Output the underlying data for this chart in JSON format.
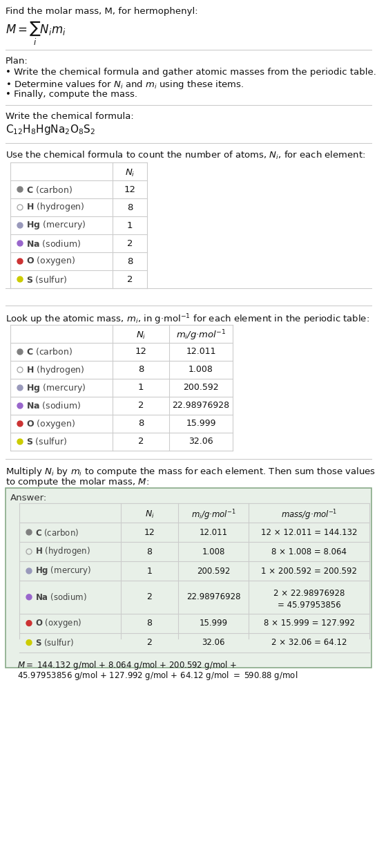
{
  "title_line1": "Find the molar mass, M, for hermophenyl:",
  "title_formula": "$M = \\sum_i N_i m_i$",
  "plan_header": "Plan:",
  "plan_bullets": [
    "Write the chemical formula and gather atomic masses from the periodic table.",
    "Determine values for $N_i$ and $m_i$ using these items.",
    "Finally, compute the mass."
  ],
  "formula_header": "Write the chemical formula:",
  "formula": "$\\mathregular{C_{12}H_8HgNa_2O_8S_2}$",
  "table1_header": "Use the chemical formula to count the number of atoms, $N_i$, for each element:",
  "table2_header": "Look up the atomic mass, $m_i$, in g·mol$^{-1}$ for each element in the periodic table:",
  "multiply_header": "Multiply $N_i$ by $m_i$ to compute the mass for each element. Then sum those values\nto compute the molar mass, $M$:",
  "elements": [
    "C (carbon)",
    "H (hydrogen)",
    "Hg (mercury)",
    "Na (sodium)",
    "O (oxygen)",
    "S (sulfur)"
  ],
  "element_symbols": [
    "C",
    "H",
    "Hg",
    "Na",
    "O",
    "S"
  ],
  "Ni": [
    12,
    8,
    1,
    2,
    8,
    2
  ],
  "mi": [
    "12.011",
    "1.008",
    "200.592",
    "22.98976928",
    "15.999",
    "32.06"
  ],
  "mass_str": [
    "12 × 12.011 = 144.132",
    "8 × 1.008 = 8.064",
    "1 × 200.592 = 200.592",
    "2 × 22.98976928\n= 45.97953856",
    "8 × 15.999 = 127.992",
    "2 × 32.06 = 64.12"
  ],
  "dot_colors": [
    "#808080",
    "#ffffff",
    "#9999bb",
    "#9966cc",
    "#cc3333",
    "#cccc00"
  ],
  "dot_open": [
    false,
    true,
    false,
    false,
    false,
    false
  ],
  "answer_box_color": "#e8f0e8",
  "answer_box_border": "#88aa88",
  "final_eq": "$M = 144.132$ g/mol $+$ 8.064 g/mol $+$ 200.592 g/mol $+$\n45.97953856 g/mol $+$ 127.992 g/mol $+$ 64.12 g/mol $= $ 590.88 g/mol",
  "bg_color": "#ffffff",
  "text_color": "#000000",
  "table_border_color": "#cccccc",
  "separator_color": "#cccccc"
}
